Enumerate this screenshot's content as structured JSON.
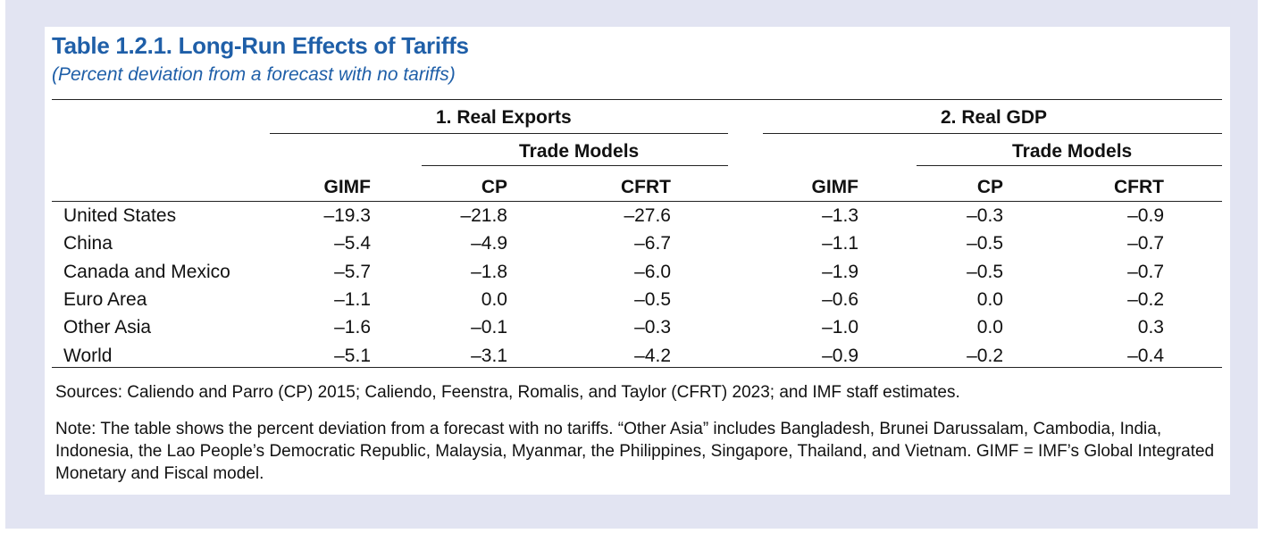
{
  "title": "Table 1.2.1. Long-Run Effects of Tariffs",
  "subtitle": "(Percent deviation from a forecast with no tariffs)",
  "groups": {
    "exports": "1. Real Exports",
    "gdp": "2. Real GDP",
    "trade_models": "Trade Models"
  },
  "columns": [
    "GIMF",
    "CP",
    "CFRT",
    "GIMF",
    "CP",
    "CFRT"
  ],
  "rows": [
    {
      "label": "United States",
      "values": [
        "–19.3",
        "–21.8",
        "–27.6",
        "–1.3",
        "–0.3",
        "–0.9"
      ]
    },
    {
      "label": "China",
      "values": [
        "–5.4",
        "–4.9",
        "–6.7",
        "–1.1",
        "–0.5",
        "–0.7"
      ]
    },
    {
      "label": "Canada and Mexico",
      "values": [
        "–5.7",
        "–1.8",
        "–6.0",
        "–1.9",
        "–0.5",
        "–0.7"
      ]
    },
    {
      "label": "Euro Area",
      "values": [
        "–1.1",
        "0.0",
        "–0.5",
        "–0.6",
        "0.0",
        "–0.2"
      ]
    },
    {
      "label": "Other Asia",
      "values": [
        "–1.6",
        "–0.1",
        "–0.3",
        "–1.0",
        "0.0",
        "0.3"
      ]
    },
    {
      "label": "World",
      "values": [
        "–5.1",
        "–3.1",
        "–4.2",
        "–0.9",
        "–0.2",
        "–0.4"
      ]
    }
  ],
  "sources": "Sources: Caliendo and Parro (CP) 2015; Caliendo, Feenstra, Romalis, and Taylor (CFRT) 2023; and IMF staff estimates.",
  "note": "Note: The table shows the percent deviation from a forecast with no tariffs. “Other Asia” includes Bangladesh, Brunei Darussalam, Cambodia, India, Indonesia, the Lao People’s Democratic Republic, Malaysia, Myanmar, the Philippines, Singapore, Thailand, and Vietnam. GIMF = IMF’s Global Integrated Monetary and Fiscal model."
}
